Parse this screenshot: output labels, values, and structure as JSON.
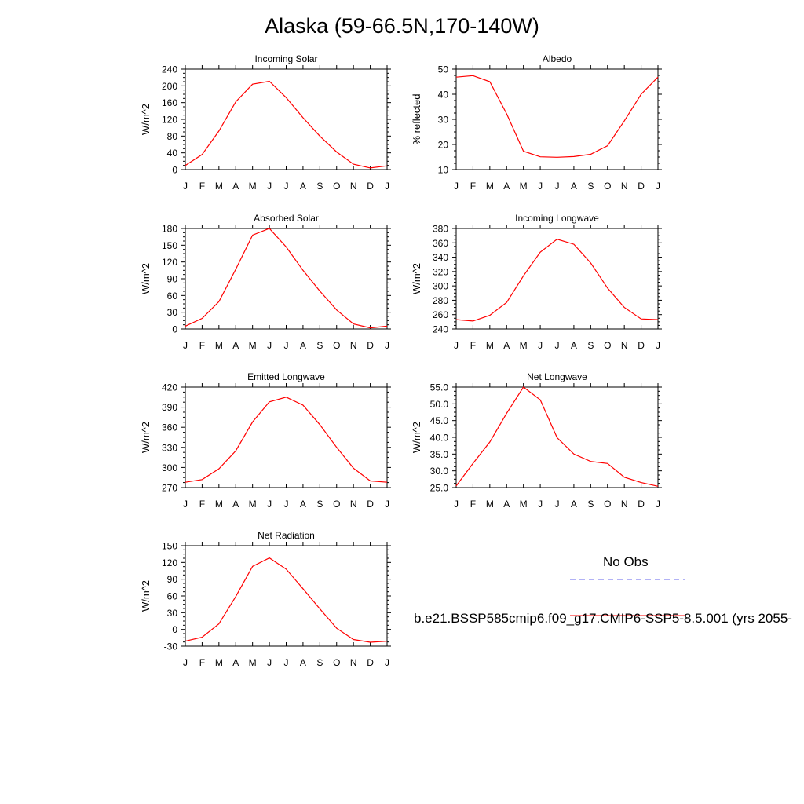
{
  "title": "Alaska (59-66.5N,170-140W)",
  "legend": {
    "obs_label": "No Obs",
    "case_label": "b.e21.BSSP585cmip6.f09_g17.CMIP6-SSP5-8.5.001 (yrs 2055-",
    "obs_color": "#6666ee",
    "case_color": "#ff0000"
  },
  "chart_data": [
    {
      "type": "line",
      "title": "Incoming Solar",
      "xlabel": "",
      "ylabel": "W/m^2",
      "categories": [
        "J",
        "F",
        "M",
        "A",
        "M",
        "J",
        "J",
        "A",
        "S",
        "O",
        "N",
        "D",
        "J"
      ],
      "ylim": [
        0,
        240
      ],
      "yticks": [
        0,
        40,
        80,
        120,
        160,
        200,
        240
      ],
      "values": [
        10,
        36,
        92,
        162,
        204,
        211,
        172,
        124,
        80,
        42,
        13,
        4,
        9
      ]
    },
    {
      "type": "line",
      "title": "Albedo",
      "xlabel": "",
      "ylabel": "% reflected",
      "categories": [
        "J",
        "F",
        "M",
        "A",
        "M",
        "J",
        "J",
        "A",
        "S",
        "O",
        "N",
        "D",
        "J"
      ],
      "ylim": [
        10,
        50
      ],
      "yticks": [
        10,
        20,
        30,
        40,
        50
      ],
      "values": [
        46.8,
        47.4,
        45.0,
        32.2,
        17.3,
        15.1,
        14.9,
        15.2,
        16.1,
        19.5,
        29.4,
        40.0,
        46.8
      ]
    },
    {
      "type": "line",
      "title": "Absorbed Solar",
      "xlabel": "",
      "ylabel": "W/m^2",
      "categories": [
        "J",
        "F",
        "M",
        "A",
        "M",
        "J",
        "J",
        "A",
        "S",
        "O",
        "N",
        "D",
        "J"
      ],
      "ylim": [
        0,
        180
      ],
      "yticks": [
        0,
        30,
        60,
        90,
        120,
        150,
        180
      ],
      "values": [
        5,
        19,
        49,
        107,
        168,
        180,
        147,
        105,
        68,
        34,
        9,
        2,
        5
      ]
    },
    {
      "type": "line",
      "title": "Incoming Longwave",
      "xlabel": "",
      "ylabel": "W/m^2",
      "categories": [
        "J",
        "F",
        "M",
        "A",
        "M",
        "J",
        "J",
        "A",
        "S",
        "O",
        "N",
        "D",
        "J"
      ],
      "ylim": [
        240,
        380
      ],
      "yticks": [
        240,
        260,
        280,
        300,
        320,
        340,
        360,
        380
      ],
      "values": [
        253,
        251,
        259,
        277,
        314,
        347,
        365,
        358,
        332,
        297,
        270,
        254,
        253
      ]
    },
    {
      "type": "line",
      "title": "Emitted Longwave",
      "xlabel": "",
      "ylabel": "W/m^2",
      "categories": [
        "J",
        "F",
        "M",
        "A",
        "M",
        "J",
        "J",
        "A",
        "S",
        "O",
        "N",
        "D",
        "J"
      ],
      "ylim": [
        270,
        420
      ],
      "yticks": [
        270,
        300,
        330,
        360,
        390,
        420
      ],
      "values": [
        278,
        282,
        298,
        325,
        368,
        398,
        405,
        393,
        364,
        330,
        299,
        280,
        278
      ]
    },
    {
      "type": "line",
      "title": "Net Longwave",
      "xlabel": "",
      "ylabel": "W/m^2",
      "categories": [
        "J",
        "F",
        "M",
        "A",
        "M",
        "J",
        "J",
        "A",
        "S",
        "O",
        "N",
        "D",
        "J"
      ],
      "ylim": [
        25,
        55
      ],
      "yticks": [
        25,
        30,
        35,
        40,
        45,
        50,
        55
      ],
      "ytick_labels": [
        "25.0",
        "30.0",
        "35.0",
        "40.0",
        "45.0",
        "50.0",
        "55.0"
      ],
      "values": [
        25.5,
        32.2,
        38.6,
        47.2,
        55.0,
        51.2,
        39.9,
        35.0,
        32.8,
        32.2,
        28.1,
        26.5,
        25.4
      ]
    },
    {
      "type": "line",
      "title": "Net Radiation",
      "xlabel": "",
      "ylabel": "W/m^2",
      "categories": [
        "J",
        "F",
        "M",
        "A",
        "M",
        "J",
        "J",
        "A",
        "S",
        "O",
        "N",
        "D",
        "J"
      ],
      "ylim": [
        -30,
        150
      ],
      "yticks": [
        -30,
        0,
        30,
        60,
        90,
        120,
        150
      ],
      "values": [
        -21,
        -14,
        10,
        59,
        113,
        128,
        108,
        73,
        37,
        2,
        -18,
        -23,
        -21
      ]
    }
  ]
}
